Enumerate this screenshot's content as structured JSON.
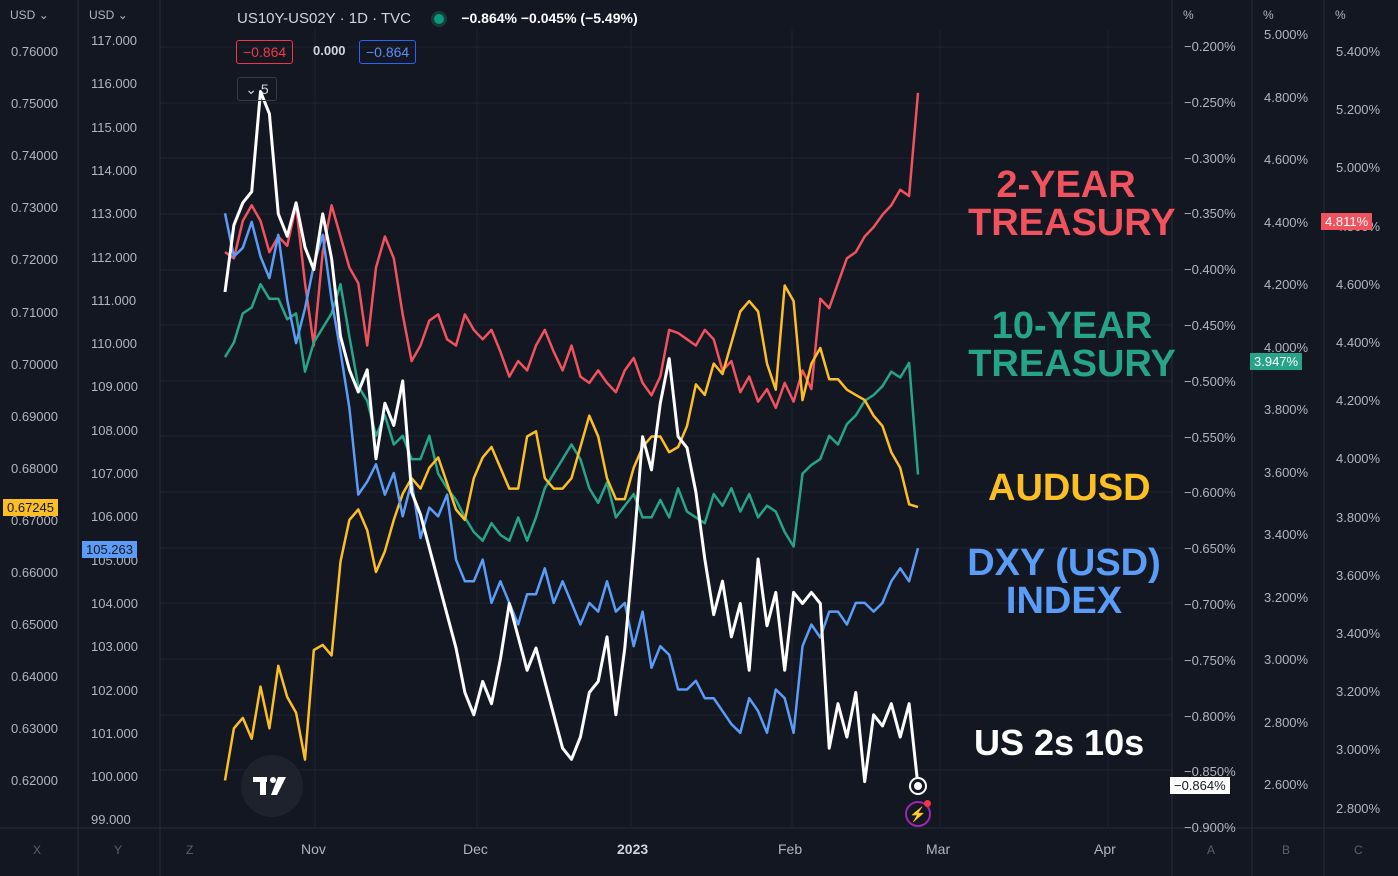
{
  "header": {
    "symbol": "US10Y-US02Y · 1D · TVC",
    "values": "−0.864%  −0.045%  (−5.49%)",
    "status_color": "#089981",
    "box_red": "−0.864",
    "box_mid": "0.000",
    "box_blue": "−0.864",
    "collapse_count": "5"
  },
  "axes": {
    "left1_head": "USD",
    "left2_head": "USD",
    "right_heads": [
      "%",
      "%",
      "%"
    ],
    "left1_ticks": [
      "0.76000",
      "0.75000",
      "0.74000",
      "0.73000",
      "0.72000",
      "0.71000",
      "0.70000",
      "0.69000",
      "0.68000",
      "0.67000",
      "0.66000",
      "0.65000",
      "0.64000",
      "0.63000",
      "0.62000"
    ],
    "left2_ticks": [
      "117.000",
      "116.000",
      "115.000",
      "114.000",
      "113.000",
      "112.000",
      "111.000",
      "110.000",
      "109.000",
      "108.000",
      "107.000",
      "106.000",
      "105.000",
      "104.000",
      "103.000",
      "102.000",
      "101.000",
      "100.000",
      "99.000"
    ],
    "right1_ticks": [
      "−0.200%",
      "−0.250%",
      "−0.300%",
      "−0.350%",
      "−0.400%",
      "−0.450%",
      "−0.500%",
      "−0.550%",
      "−0.600%",
      "−0.650%",
      "−0.700%",
      "−0.750%",
      "−0.800%",
      "−0.850%",
      "−0.900%"
    ],
    "right2_ticks": [
      "5.000%",
      "4.800%",
      "4.600%",
      "4.400%",
      "4.200%",
      "4.000%",
      "3.800%",
      "3.600%",
      "3.400%",
      "3.200%",
      "3.000%",
      "2.800%",
      "2.600%"
    ],
    "right3_ticks": [
      "5.400%",
      "5.200%",
      "5.000%",
      "4.800%",
      "4.600%",
      "4.400%",
      "4.200%",
      "4.000%",
      "3.800%",
      "3.600%",
      "3.400%",
      "3.200%",
      "3.000%",
      "2.800%"
    ],
    "x_ticks": [
      "Nov",
      "Dec",
      "2023",
      "Feb",
      "Mar",
      "Apr"
    ],
    "bottom_keys": [
      "X",
      "Y",
      "Z",
      "A",
      "B",
      "C"
    ],
    "tag_aud": "0.67245",
    "tag_dxy": "105.263",
    "tag_spread": "−0.864%",
    "tag_2y": "4.811%",
    "tag_10y": "3.947%"
  },
  "labels": {
    "two_year": [
      "2-YEAR",
      "TREASURY"
    ],
    "ten_year": [
      "10-YEAR",
      "TREASURY"
    ],
    "audusd": "AUDUSD",
    "dxy": [
      "DXY (USD)",
      "INDEX"
    ],
    "spread": "US 2s 10s"
  },
  "colors": {
    "two_year": "#f0525e",
    "ten_year": "#26a489",
    "audusd": "#fbbf24",
    "dxy": "#5b9cf6",
    "spread": "#ffffff"
  },
  "chart_data": {
    "type": "line",
    "x_range": [
      "2022-10-07",
      "2023-04-20"
    ],
    "series": [
      {
        "name": "US10Y-US02Y",
        "axis": "right1",
        "unit": "%",
        "values": [
          -0.42,
          -0.36,
          -0.34,
          -0.33,
          -0.24,
          -0.26,
          -0.35,
          -0.37,
          -0.34,
          -0.38,
          -0.4,
          -0.35,
          -0.39,
          -0.46,
          -0.49,
          -0.51,
          -0.49,
          -0.57,
          -0.52,
          -0.54,
          -0.5,
          -0.6,
          -0.62,
          -0.65,
          -0.68,
          -0.71,
          -0.74,
          -0.78,
          -0.8,
          -0.77,
          -0.79,
          -0.75,
          -0.7,
          -0.73,
          -0.76,
          -0.74,
          -0.77,
          -0.8,
          -0.83,
          -0.84,
          -0.82,
          -0.78,
          -0.77,
          -0.73,
          -0.8,
          -0.74,
          -0.65,
          -0.55,
          -0.58,
          -0.52,
          -0.48,
          -0.55,
          -0.56,
          -0.6,
          -0.66,
          -0.71,
          -0.68,
          -0.73,
          -0.7,
          -0.76,
          -0.66,
          -0.72,
          -0.69,
          -0.76,
          -0.69,
          -0.7,
          -0.69,
          -0.7,
          -0.83,
          -0.79,
          -0.82,
          -0.78,
          -0.86,
          -0.8,
          -0.81,
          -0.79,
          -0.82,
          -0.79,
          -0.864
        ]
      },
      {
        "name": "US02Y",
        "axis": "right2",
        "unit": "%",
        "values": [
          4.3,
          4.28,
          4.4,
          4.45,
          4.4,
          4.3,
          4.35,
          4.32,
          4.45,
          4.2,
          4.0,
          4.3,
          4.45,
          4.35,
          4.25,
          4.2,
          4.0,
          4.25,
          4.35,
          4.28,
          4.1,
          3.95,
          4.0,
          4.08,
          4.1,
          4.02,
          4.0,
          4.1,
          4.05,
          4.02,
          4.05,
          3.98,
          3.9,
          3.95,
          3.92,
          4.0,
          4.05,
          3.98,
          3.92,
          4.0,
          3.9,
          3.88,
          3.92,
          3.88,
          3.85,
          3.92,
          3.96,
          3.88,
          3.84,
          3.9,
          4.05,
          4.04,
          4.02,
          4.0,
          4.05,
          4.02,
          3.92,
          3.95,
          3.85,
          3.9,
          3.82,
          3.86,
          3.8,
          3.88,
          3.82,
          3.92,
          3.86,
          4.15,
          4.12,
          4.2,
          4.28,
          4.3,
          4.35,
          4.38,
          4.42,
          4.45,
          4.5,
          4.48,
          4.811
        ]
      },
      {
        "name": "US10Y",
        "axis": "right3",
        "unit": "%",
        "values": [
          4.35,
          4.4,
          4.5,
          4.52,
          4.6,
          4.55,
          4.55,
          4.48,
          4.5,
          4.3,
          4.4,
          4.45,
          4.5,
          4.6,
          4.42,
          4.25,
          4.2,
          4.08,
          4.15,
          4.05,
          4.08,
          4.0,
          4.0,
          4.08,
          3.95,
          3.9,
          3.86,
          3.8,
          3.75,
          3.72,
          3.78,
          3.74,
          3.72,
          3.8,
          3.72,
          3.8,
          3.9,
          3.95,
          4.0,
          4.05,
          4.0,
          3.9,
          3.85,
          3.92,
          3.8,
          3.84,
          3.88,
          3.8,
          3.8,
          3.86,
          3.8,
          3.9,
          3.82,
          3.8,
          3.78,
          3.88,
          3.84,
          3.9,
          3.82,
          3.88,
          3.8,
          3.84,
          3.82,
          3.75,
          3.7,
          3.95,
          3.98,
          4.0,
          4.08,
          4.05,
          4.12,
          4.15,
          4.2,
          4.22,
          4.25,
          4.3,
          4.28,
          4.33,
          3.947
        ]
      },
      {
        "name": "AUDUSD",
        "axis": "left1",
        "unit": "USD",
        "values": [
          0.62,
          0.63,
          0.632,
          0.628,
          0.638,
          0.63,
          0.642,
          0.636,
          0.633,
          0.624,
          0.645,
          0.646,
          0.644,
          0.662,
          0.67,
          0.672,
          0.668,
          0.66,
          0.664,
          0.67,
          0.675,
          0.678,
          0.676,
          0.68,
          0.682,
          0.677,
          0.672,
          0.67,
          0.678,
          0.682,
          0.684,
          0.68,
          0.676,
          0.676,
          0.686,
          0.687,
          0.678,
          0.676,
          0.676,
          0.678,
          0.684,
          0.69,
          0.686,
          0.678,
          0.674,
          0.674,
          0.68,
          0.684,
          0.686,
          0.686,
          0.683,
          0.684,
          0.688,
          0.696,
          0.694,
          0.7,
          0.698,
          0.704,
          0.71,
          0.712,
          0.71,
          0.7,
          0.695,
          0.715,
          0.712,
          0.693,
          0.7,
          0.703,
          0.697,
          0.697,
          0.695,
          0.694,
          0.693,
          0.69,
          0.688,
          0.683,
          0.68,
          0.673,
          0.67245
        ]
      },
      {
        "name": "DXY",
        "axis": "left2",
        "unit": "USD",
        "values": [
          113.0,
          112.0,
          112.2,
          112.8,
          112.0,
          111.5,
          112.5,
          111.0,
          110.0,
          110.8,
          111.8,
          112.5,
          111.0,
          109.8,
          108.5,
          106.5,
          106.8,
          107.2,
          106.5,
          107.0,
          106.0,
          106.8,
          105.5,
          106.2,
          106.0,
          106.5,
          105.0,
          104.5,
          104.5,
          105.0,
          104.0,
          104.5,
          104.0,
          103.5,
          104.2,
          104.2,
          104.8,
          104.0,
          104.5,
          104.0,
          103.5,
          104.0,
          103.8,
          104.5,
          103.8,
          104.0,
          103.0,
          103.8,
          102.5,
          103.0,
          102.8,
          102.0,
          102.0,
          102.2,
          101.8,
          101.8,
          101.5,
          101.2,
          101.0,
          101.8,
          101.5,
          101.0,
          102.0,
          101.8,
          101.0,
          103.0,
          103.5,
          103.2,
          103.8,
          103.8,
          103.5,
          104.0,
          104.0,
          103.8,
          104.0,
          104.5,
          104.8,
          104.5,
          105.263
        ]
      }
    ],
    "x_axis_labels": [
      "Nov",
      "Dec",
      "2023",
      "Feb",
      "Mar",
      "Apr"
    ]
  }
}
